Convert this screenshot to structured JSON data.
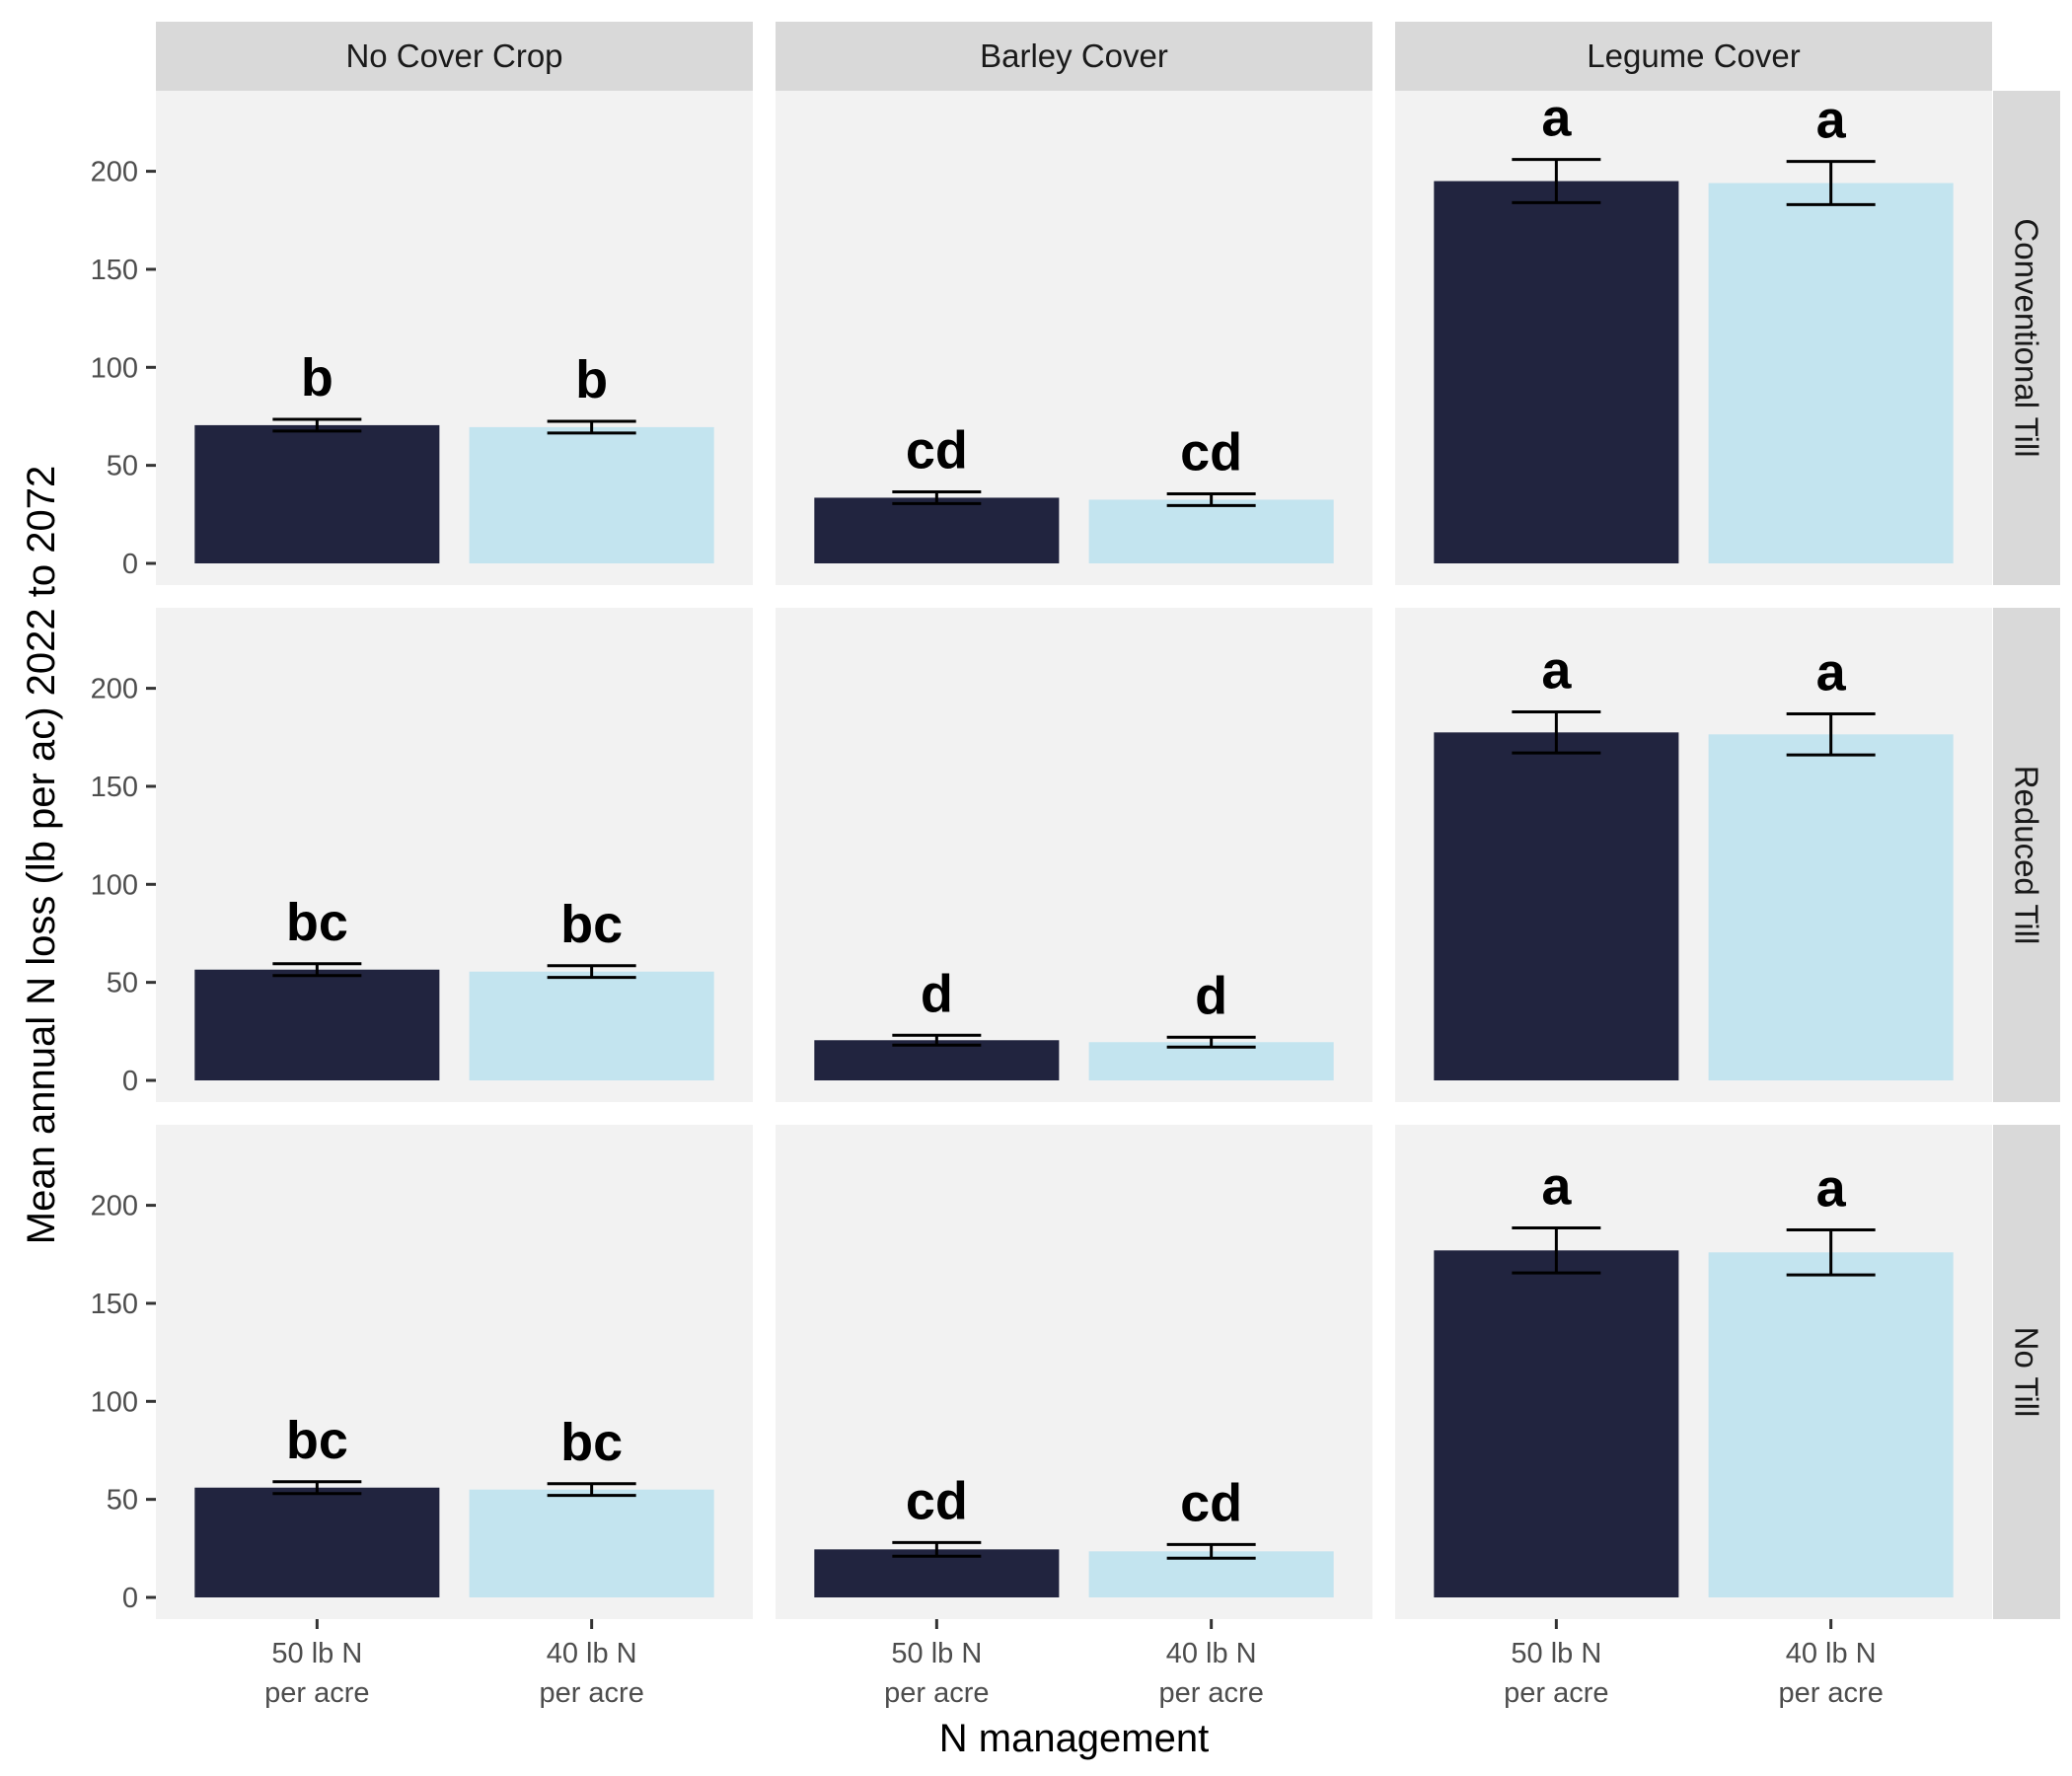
{
  "chart_data": {
    "type": "bar",
    "xlabel": "N management",
    "ylabel": "Mean annual N loss (lb per ac) 2022 to 2072",
    "ylim": [
      0,
      230
    ],
    "y_ticks": [
      0,
      50,
      100,
      150,
      200
    ],
    "grid": false,
    "categories": [
      [
        "50 lb N",
        "per acre"
      ],
      [
        "40 lb N",
        "per acre"
      ]
    ],
    "columns": [
      "No Cover Crop",
      "Barley Cover",
      "Legume Cover"
    ],
    "rows": [
      "Conventional Till",
      "Reduced Till",
      "No Till"
    ],
    "colors": {
      "50 lb N per acre": "#21243f",
      "40 lb N per acre": "#c3e4ef"
    },
    "panels": [
      [
        {
          "values": [
            70.5,
            69.5
          ],
          "errors": [
            3,
            3
          ],
          "labels": [
            "b",
            "b"
          ]
        },
        {
          "values": [
            33.5,
            32.5
          ],
          "errors": [
            3,
            3
          ],
          "labels": [
            "cd",
            "cd"
          ]
        },
        {
          "values": [
            195,
            194
          ],
          "errors": [
            11,
            11
          ],
          "labels": [
            "a",
            "a"
          ]
        }
      ],
      [
        {
          "values": [
            56.5,
            55.5
          ],
          "errors": [
            3,
            3
          ],
          "labels": [
            "bc",
            "bc"
          ]
        },
        {
          "values": [
            20.5,
            19.5
          ],
          "errors": [
            2.5,
            2.5
          ],
          "labels": [
            "d",
            "d"
          ]
        },
        {
          "values": [
            177.5,
            176.5
          ],
          "errors": [
            10.5,
            10.5
          ],
          "labels": [
            "a",
            "a"
          ]
        }
      ],
      [
        {
          "values": [
            56,
            55
          ],
          "errors": [
            3,
            3
          ],
          "labels": [
            "bc",
            "bc"
          ]
        },
        {
          "values": [
            24.5,
            23.5
          ],
          "errors": [
            3.5,
            3.5
          ],
          "labels": [
            "cd",
            "cd"
          ]
        },
        {
          "values": [
            177,
            176
          ],
          "errors": [
            11.5,
            11.5
          ],
          "labels": [
            "a",
            "a"
          ]
        }
      ]
    ]
  }
}
